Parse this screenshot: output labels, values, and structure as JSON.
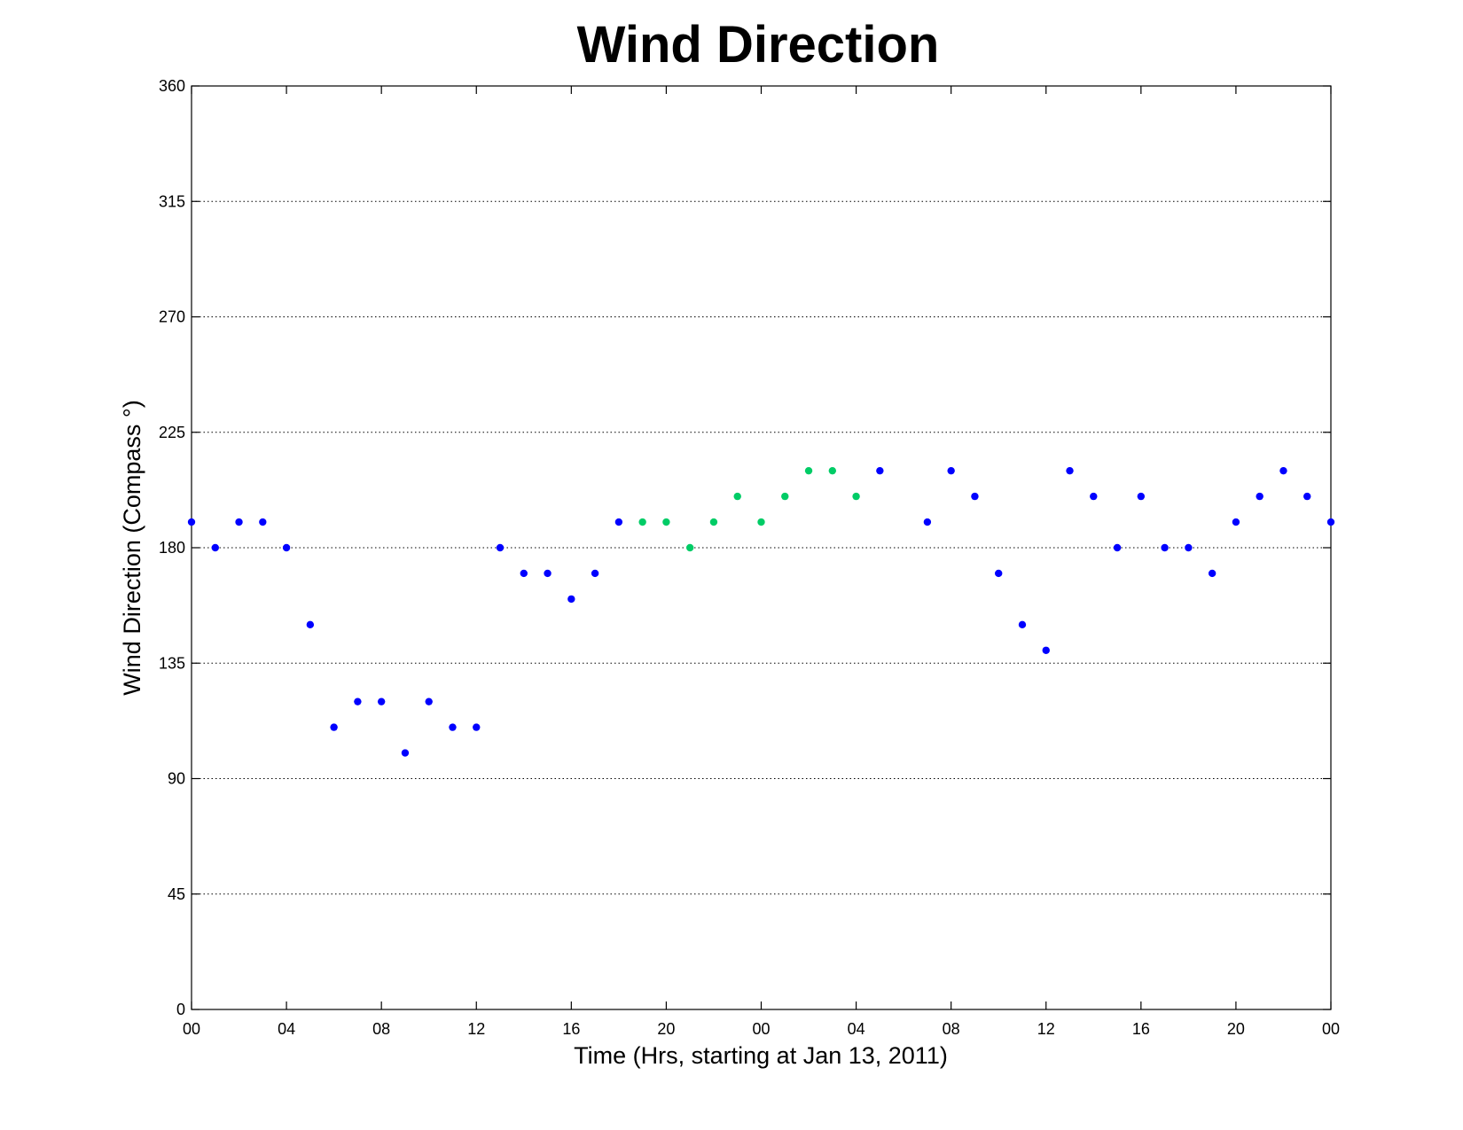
{
  "chart_data": {
    "type": "scatter",
    "title": "Wind Direction",
    "xlabel": "Time (Hrs, starting at Jan 13, 2011)",
    "ylabel": "Wind Direction (Compass  °)",
    "xlim": [
      0,
      48
    ],
    "ylim": [
      0,
      360
    ],
    "x_tick_values": [
      0,
      4,
      8,
      12,
      16,
      20,
      24,
      28,
      32,
      36,
      40,
      44,
      48
    ],
    "x_tick_labels": [
      "00",
      "04",
      "08",
      "12",
      "16",
      "20",
      "00",
      "04",
      "08",
      "12",
      "16",
      "20",
      "00"
    ],
    "y_ticks": [
      0,
      45,
      90,
      135,
      180,
      225,
      270,
      315,
      360
    ],
    "grid": "horizontal dotted",
    "colors": {
      "primary": "#0000ff",
      "secondary": "#00cc66"
    },
    "series": [
      {
        "color": "#0000ff",
        "x": [
          0,
          1,
          2,
          3,
          4,
          5,
          6,
          7,
          8,
          9,
          10,
          11,
          12,
          13,
          14,
          15,
          16,
          17,
          18,
          29,
          31,
          32,
          33,
          34,
          35,
          36,
          37,
          38,
          39,
          40,
          41,
          42,
          43,
          44,
          45,
          46,
          47,
          48
        ],
        "y": [
          190,
          180,
          190,
          190,
          180,
          150,
          110,
          120,
          120,
          100,
          120,
          110,
          110,
          180,
          170,
          170,
          160,
          170,
          190,
          210,
          190,
          210,
          200,
          170,
          150,
          140,
          210,
          200,
          180,
          200,
          180,
          180,
          170,
          190,
          200,
          210,
          200,
          190
        ]
      },
      {
        "color": "#00cc66",
        "x": [
          19,
          20,
          21,
          22,
          23,
          24,
          25,
          26,
          27,
          28
        ],
        "y": [
          190,
          190,
          180,
          190,
          200,
          190,
          200,
          210,
          210,
          200
        ]
      }
    ]
  }
}
